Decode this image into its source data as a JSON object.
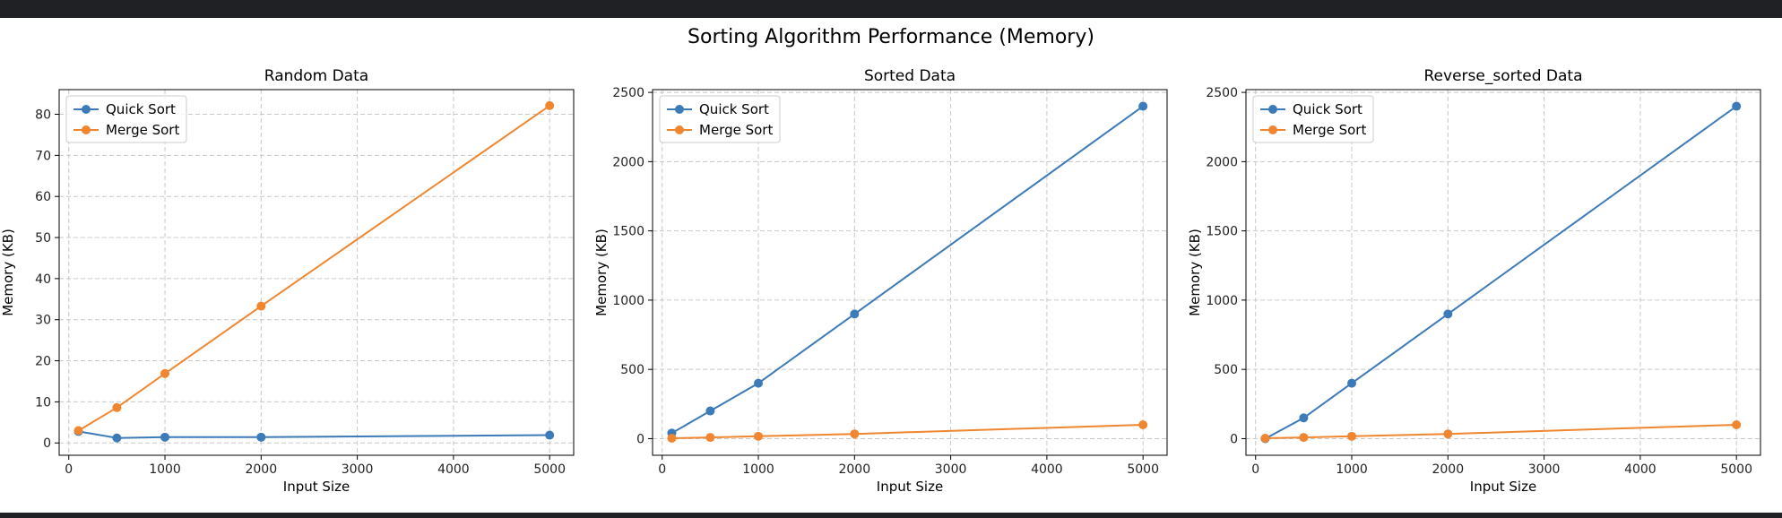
{
  "figure": {
    "title": "Sorting Algorithm Performance (Memory)"
  },
  "colors": {
    "quick_sort": "#3d7ab8",
    "merge_sort": "#f0862f",
    "grid": "#c8c8c8",
    "axis": "#000000",
    "background": "#ffffff",
    "window_frame": "#1f2124"
  },
  "chart_data": [
    {
      "type": "line",
      "title": "Random Data",
      "xlabel": "Input Size",
      "ylabel": "Memory (KB)",
      "x": [
        100,
        500,
        1000,
        2000,
        5000
      ],
      "xlim": [
        -100,
        5250
      ],
      "ylim": [
        -3,
        86
      ],
      "xticks": [
        0,
        1000,
        2000,
        3000,
        4000,
        5000
      ],
      "yticks": [
        0,
        10,
        20,
        30,
        40,
        50,
        60,
        70,
        80
      ],
      "grid": true,
      "legend": "upper left",
      "series": [
        {
          "name": "Quick Sort",
          "values": [
            2.8,
            1.2,
            1.4,
            1.4,
            1.9
          ]
        },
        {
          "name": "Merge Sort",
          "values": [
            3.0,
            8.6,
            16.9,
            33.3,
            82.1
          ]
        }
      ]
    },
    {
      "type": "line",
      "title": "Sorted Data",
      "xlabel": "Input Size",
      "ylabel": "Memory (KB)",
      "x": [
        100,
        500,
        1000,
        2000,
        5000
      ],
      "xlim": [
        -100,
        5250
      ],
      "ylim": [
        -120,
        2520
      ],
      "xticks": [
        0,
        1000,
        2000,
        3000,
        4000,
        5000
      ],
      "yticks": [
        0,
        500,
        1000,
        1500,
        2000,
        2500
      ],
      "grid": true,
      "legend": "upper left",
      "series": [
        {
          "name": "Quick Sort",
          "values": [
            40,
            200,
            400,
            900,
            2400
          ]
        },
        {
          "name": "Merge Sort",
          "values": [
            3,
            9,
            17,
            34,
            100
          ]
        }
      ]
    },
    {
      "type": "line",
      "title": "Reverse_sorted Data",
      "xlabel": "Input Size",
      "ylabel": "Memory (KB)",
      "x": [
        100,
        500,
        1000,
        2000,
        5000
      ],
      "xlim": [
        -100,
        5250
      ],
      "ylim": [
        -120,
        2520
      ],
      "xticks": [
        0,
        1000,
        2000,
        3000,
        4000,
        5000
      ],
      "yticks": [
        0,
        500,
        1000,
        1500,
        2000,
        2500
      ],
      "grid": true,
      "legend": "upper left",
      "series": [
        {
          "name": "Quick Sort",
          "values": [
            0,
            150,
            400,
            900,
            2400
          ]
        },
        {
          "name": "Merge Sort",
          "values": [
            3,
            9,
            17,
            34,
            100
          ]
        }
      ]
    }
  ]
}
